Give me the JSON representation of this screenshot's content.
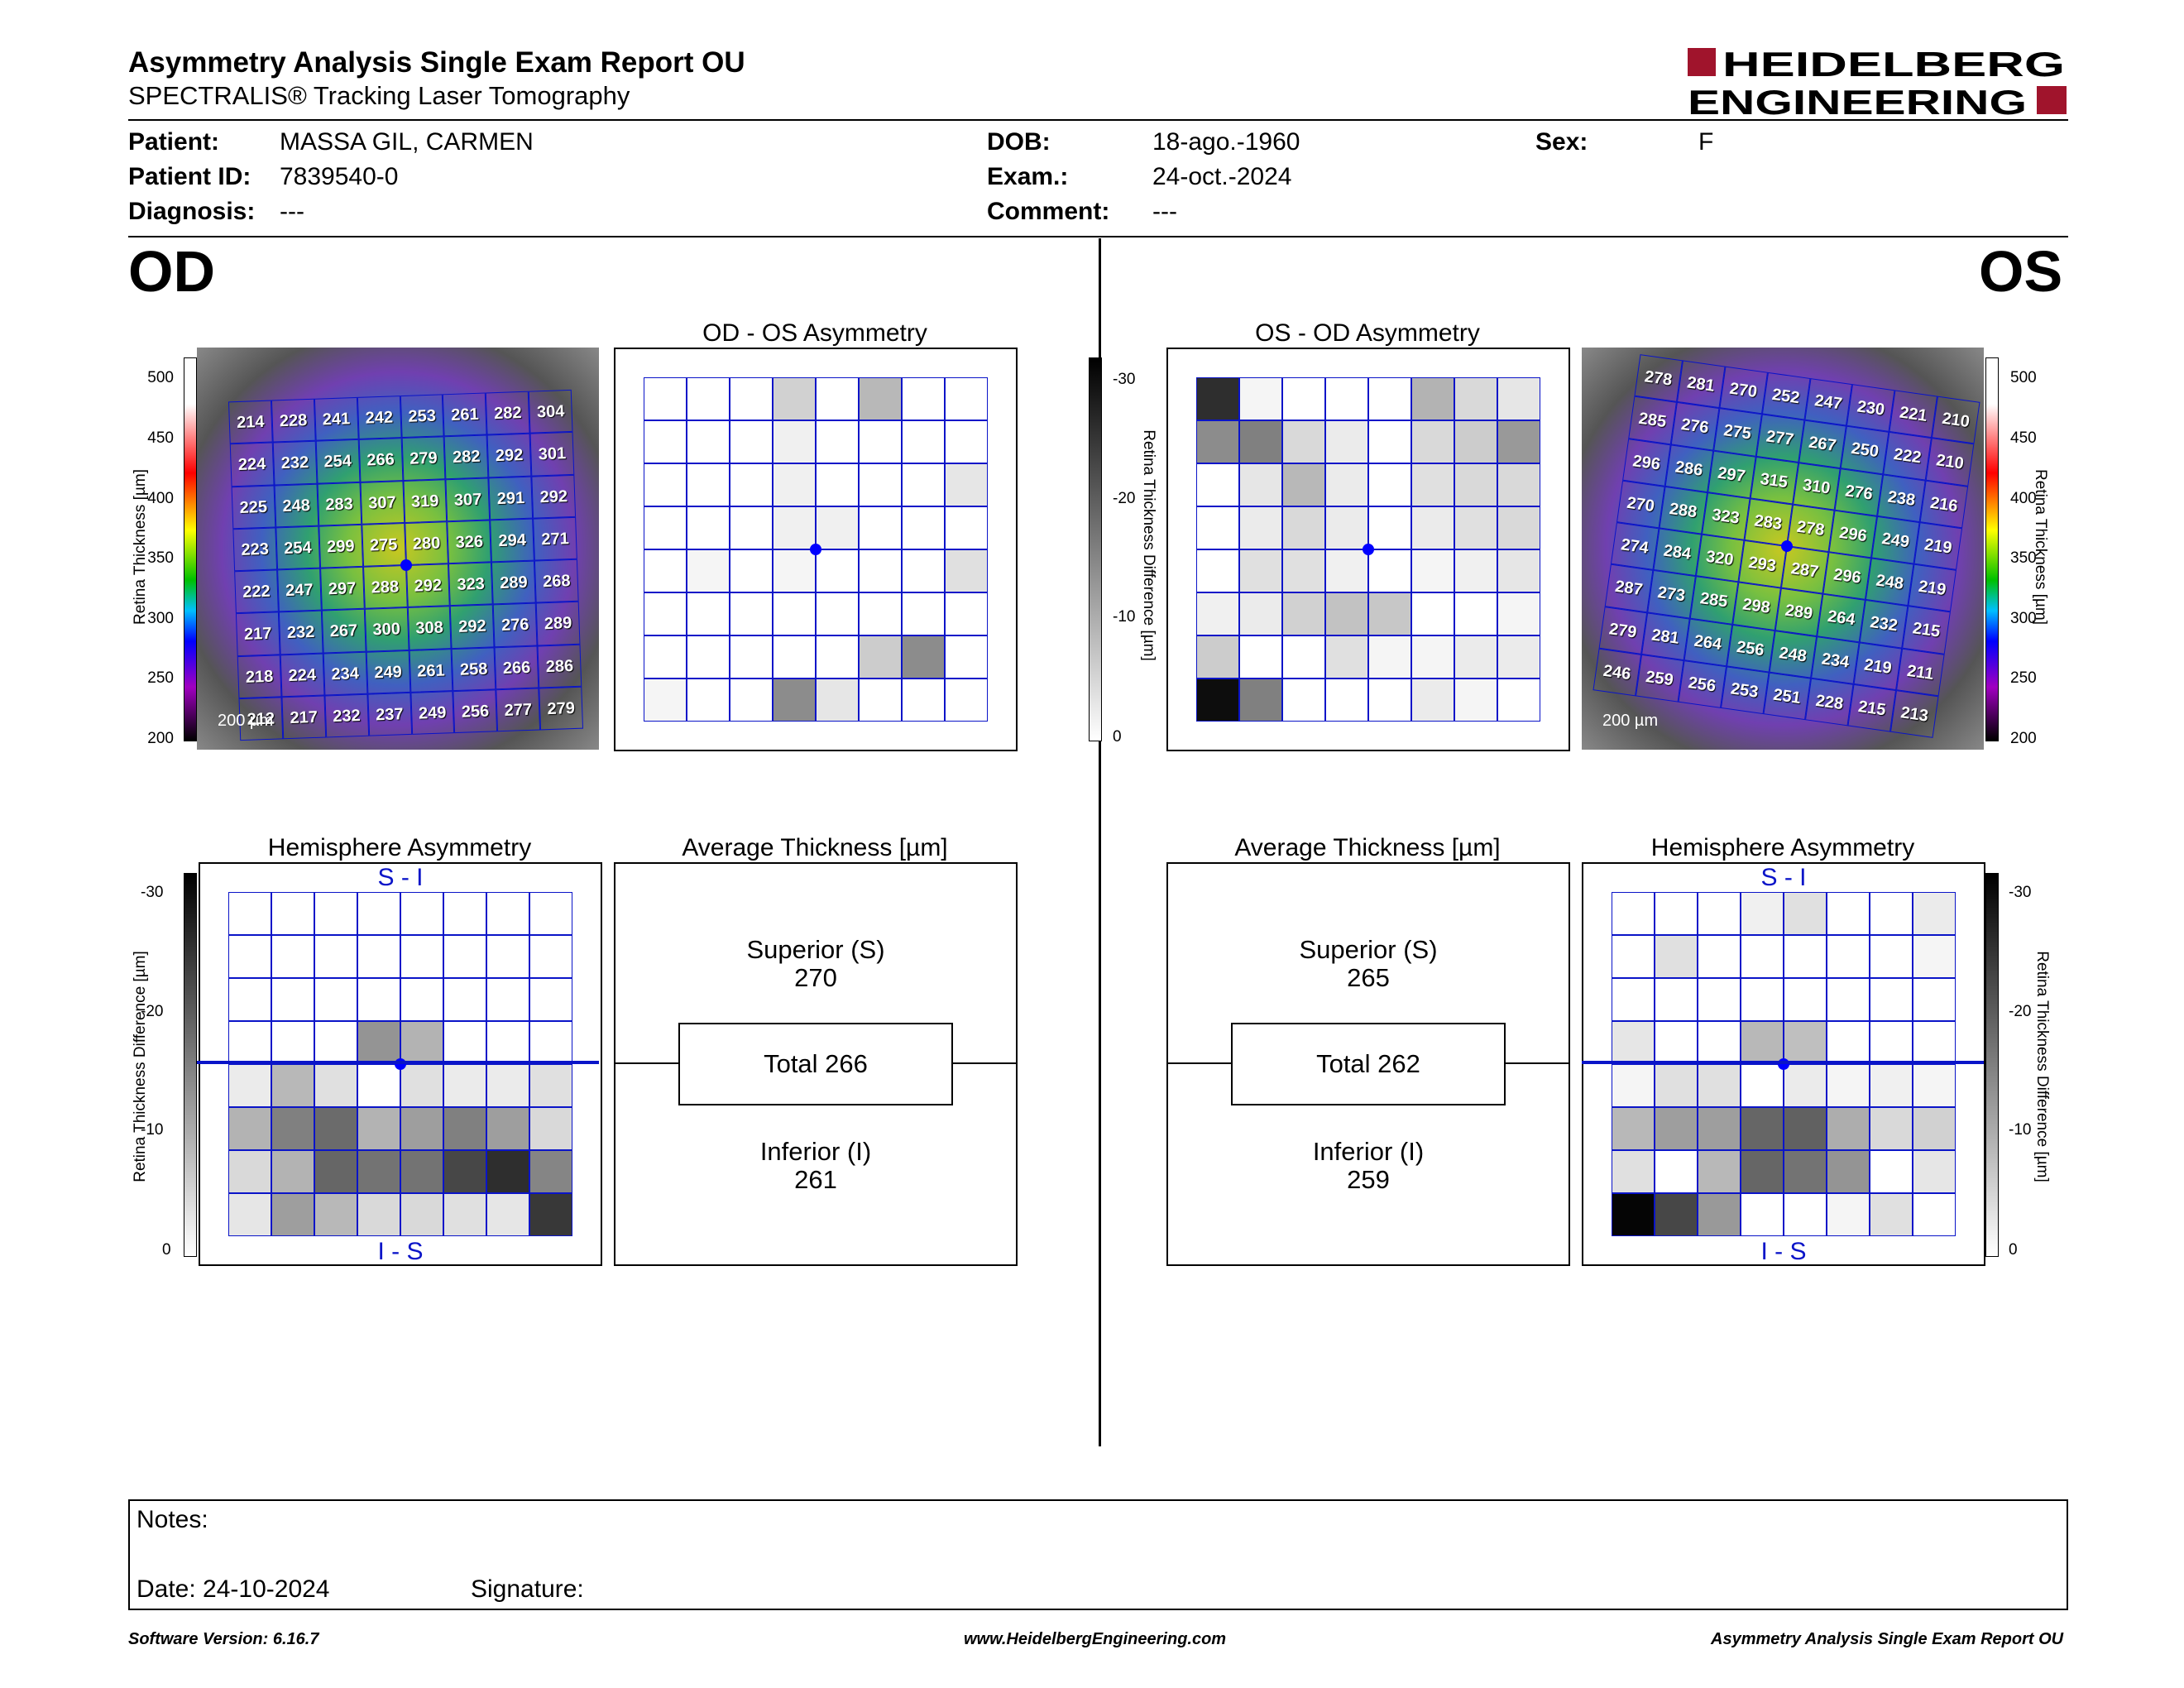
{
  "header": {
    "title": "Asymmetry Analysis Single Exam Report OU",
    "subtitle": "SPECTRALIS® Tracking Laser Tomography",
    "logo_line1": "HEIDELBERG",
    "logo_line2": "ENGINEERING"
  },
  "patient": {
    "patient_label": "Patient:",
    "patient_value": "MASSA GIL, CARMEN",
    "id_label": "Patient ID:",
    "id_value": "7839540-0",
    "diagnosis_label": "Diagnosis:",
    "diagnosis_value": "---",
    "dob_label": "DOB:",
    "dob_value": "18-ago.-1960",
    "exam_label": "Exam.:",
    "exam_value": "24-oct.-2024",
    "comment_label": "Comment:",
    "comment_value": "---",
    "sex_label": "Sex:",
    "sex_value": "F"
  },
  "eyes": {
    "od": "OD",
    "os": "OS"
  },
  "od": {
    "asym_title": "OD - OS Asymmetry",
    "hemi_title": "Hemisphere Asymmetry",
    "avg_title": "Average Thickness [µm]",
    "superior_label": "Superior (S)",
    "superior_value": "270",
    "total": "Total 266",
    "inferior_label": "Inferior (I)",
    "inferior_value": "261",
    "scale_bar": "200 µm",
    "si": "S - I",
    "is": "I - S",
    "thickness_grid": [
      [
        214,
        228,
        241,
        242,
        253,
        261,
        282,
        304
      ],
      [
        224,
        232,
        254,
        266,
        279,
        282,
        292,
        301
      ],
      [
        225,
        248,
        283,
        307,
        319,
        307,
        291,
        292
      ],
      [
        223,
        254,
        299,
        275,
        280,
        326,
        294,
        271
      ],
      [
        222,
        247,
        297,
        288,
        292,
        323,
        289,
        268
      ],
      [
        217,
        232,
        267,
        300,
        308,
        292,
        276,
        289
      ],
      [
        218,
        224,
        234,
        249,
        261,
        258,
        266,
        286
      ],
      [
        212,
        217,
        232,
        237,
        249,
        256,
        277,
        279
      ]
    ],
    "asym_grid": [
      [
        0,
        0,
        0,
        0.18,
        0,
        0.28,
        0,
        0
      ],
      [
        0,
        0,
        0,
        0.06,
        0,
        0,
        0,
        0
      ],
      [
        0,
        0,
        0,
        0.06,
        0,
        0,
        0,
        0.1
      ],
      [
        0,
        0,
        0,
        0.06,
        0.06,
        0,
        0,
        0
      ],
      [
        0,
        0.04,
        0,
        0.04,
        0,
        0,
        0,
        0.12
      ],
      [
        0,
        0,
        0,
        0,
        0,
        0,
        0,
        0
      ],
      [
        0,
        0,
        0,
        0,
        0,
        0.2,
        0.45,
        0
      ],
      [
        0.04,
        0,
        0,
        0.45,
        0.1,
        0,
        0,
        0
      ]
    ],
    "hemi_grid": [
      [
        0,
        0,
        0,
        0,
        0,
        0,
        0,
        0
      ],
      [
        0,
        0,
        0,
        0,
        0,
        0,
        0,
        0
      ],
      [
        0,
        0,
        0,
        0,
        0,
        0,
        0,
        0
      ],
      [
        0,
        0,
        0,
        0.42,
        0.3,
        0,
        0,
        0
      ],
      [
        0.08,
        0.28,
        0.12,
        0,
        0.12,
        0.08,
        0.08,
        0.12
      ],
      [
        0.3,
        0.5,
        0.58,
        0.3,
        0.38,
        0.5,
        0.38,
        0.15
      ],
      [
        0.15,
        0.3,
        0.6,
        0.55,
        0.55,
        0.72,
        0.82,
        0.48
      ],
      [
        0.1,
        0.38,
        0.28,
        0.15,
        0.15,
        0.12,
        0.1,
        0.78
      ]
    ]
  },
  "os": {
    "asym_title": "OS - OD Asymmetry",
    "hemi_title": "Hemisphere Asymmetry",
    "avg_title": "Average Thickness [µm]",
    "superior_label": "Superior (S)",
    "superior_value": "265",
    "total": "Total 262",
    "inferior_label": "Inferior (I)",
    "inferior_value": "259",
    "scale_bar": "200 µm",
    "si": "S - I",
    "is": "I - S",
    "thickness_grid": [
      [
        278,
        281,
        270,
        252,
        247,
        230,
        221,
        210
      ],
      [
        285,
        276,
        275,
        277,
        267,
        250,
        222,
        210
      ],
      [
        296,
        286,
        297,
        315,
        310,
        276,
        238,
        216
      ],
      [
        270,
        288,
        323,
        283,
        278,
        296,
        249,
        219
      ],
      [
        274,
        284,
        320,
        293,
        287,
        296,
        248,
        219
      ],
      [
        287,
        273,
        285,
        298,
        289,
        264,
        232,
        215
      ],
      [
        279,
        281,
        264,
        256,
        248,
        234,
        219,
        211
      ],
      [
        246,
        259,
        256,
        253,
        251,
        228,
        215,
        213
      ]
    ],
    "asym_grid": [
      [
        0.82,
        0.04,
        0,
        0,
        0,
        0.3,
        0.15,
        0.1
      ],
      [
        0.45,
        0.5,
        0.15,
        0.08,
        0,
        0.15,
        0.2,
        0.4
      ],
      [
        0,
        0.1,
        0.28,
        0.08,
        0,
        0.12,
        0.15,
        0.15
      ],
      [
        0,
        0.08,
        0.15,
        0.08,
        0,
        0.08,
        0.12,
        0.15
      ],
      [
        0,
        0.12,
        0.12,
        0.06,
        0,
        0.04,
        0.06,
        0.1
      ],
      [
        0.06,
        0.08,
        0.18,
        0.24,
        0.22,
        0,
        0,
        0.04
      ],
      [
        0.2,
        0,
        0,
        0.12,
        0.04,
        0.04,
        0.08,
        0.08
      ],
      [
        0.95,
        0.5,
        0,
        0,
        0,
        0.08,
        0.04,
        0
      ]
    ],
    "hemi_grid": [
      [
        0,
        0,
        0,
        0.06,
        0.12,
        0,
        0,
        0.08
      ],
      [
        0,
        0.12,
        0,
        0,
        0,
        0,
        0,
        0.04
      ],
      [
        0,
        0,
        0,
        0,
        0,
        0,
        0,
        0
      ],
      [
        0.1,
        0,
        0,
        0.28,
        0.25,
        0,
        0,
        0
      ],
      [
        0.04,
        0.12,
        0.12,
        0,
        0.08,
        0.04,
        0.06,
        0.04
      ],
      [
        0.28,
        0.38,
        0.38,
        0.6,
        0.62,
        0.32,
        0.15,
        0.18
      ],
      [
        0.12,
        0,
        0.28,
        0.6,
        0.55,
        0.42,
        0,
        0.1
      ],
      [
        0.98,
        0.72,
        0.4,
        0,
        0,
        0.04,
        0.12,
        0
      ]
    ]
  },
  "scales": {
    "thickness_label": "Retina Thickness [µm]",
    "thickness_ticks": [
      "500",
      "450",
      "400",
      "350",
      "300",
      "250",
      "200"
    ],
    "diff_label": "Retina Thickness Difference [µm]",
    "diff_ticks": [
      "-30",
      "-20",
      "-10",
      "0"
    ]
  },
  "notes": {
    "notes_label": "Notes:",
    "date_label": "Date: 24-10-2024",
    "signature_label": "Signature:"
  },
  "footer": {
    "version": "Software Version: 6.16.7",
    "url": "www.HeidelbergEngineering.com",
    "report": "Asymmetry Analysis Single Exam Report OU"
  },
  "colors": {
    "grid_blue": "#0a14c8",
    "logo_red": "#a0142c",
    "center_dot": "#0000ff"
  }
}
